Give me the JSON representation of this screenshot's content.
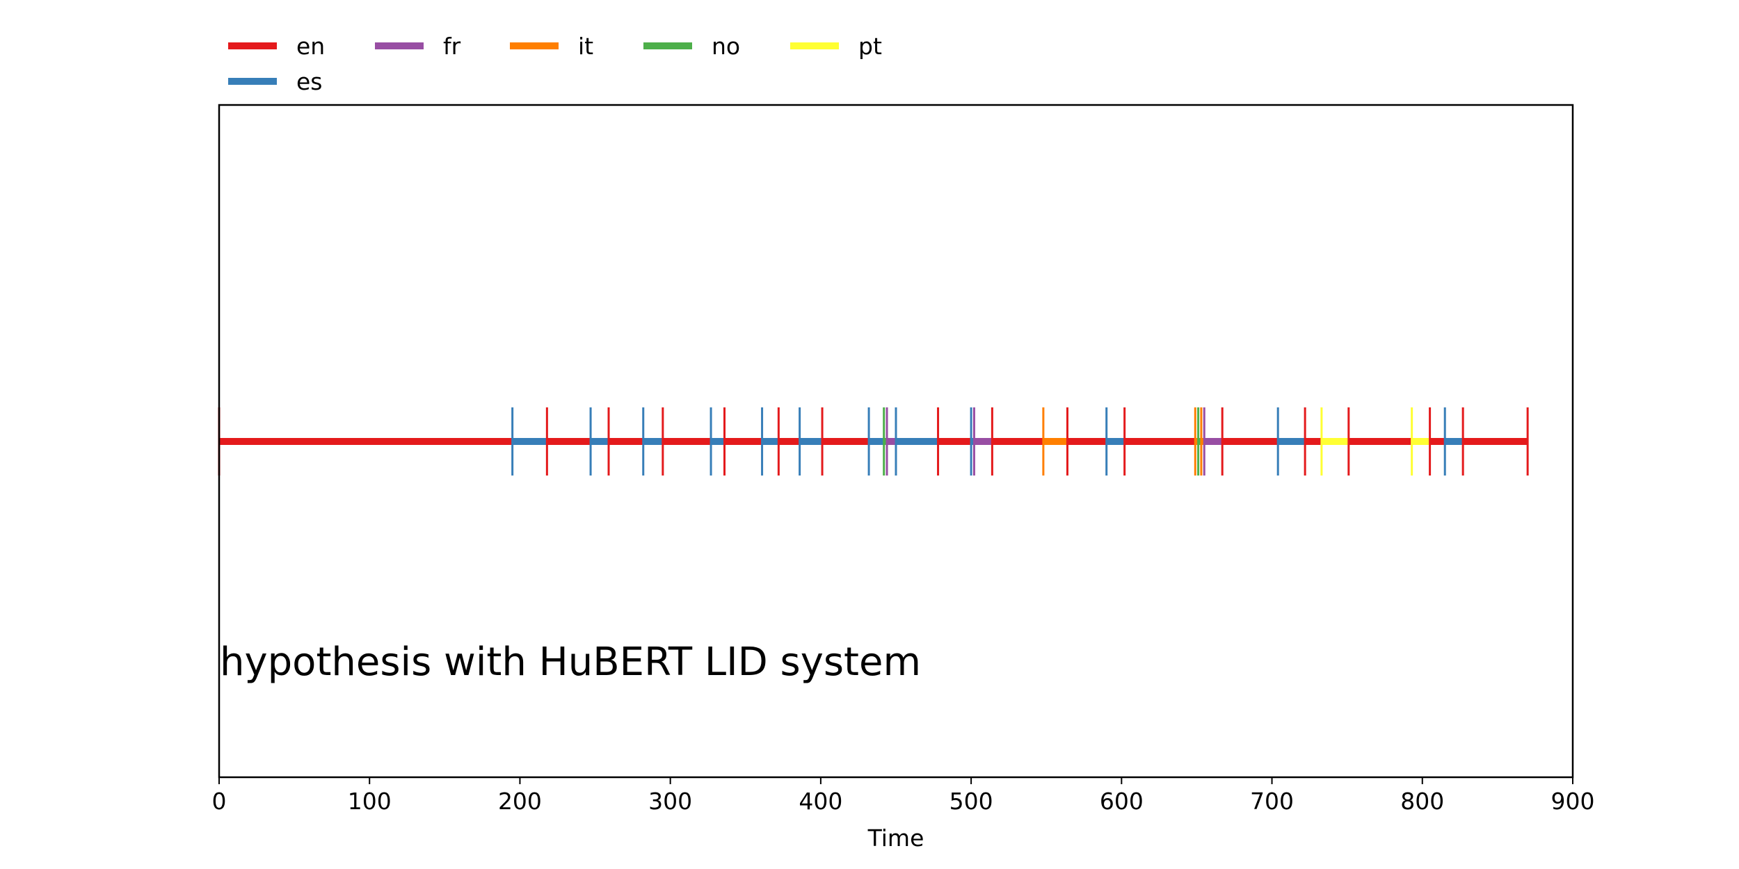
{
  "chart_data": {
    "type": "timeline",
    "title": "",
    "annotation": "hypothesis with HuBERT LID system",
    "xlabel": "Time",
    "ylabel": "",
    "xlim": [
      0,
      900
    ],
    "xticks": [
      0,
      100,
      200,
      300,
      400,
      500,
      600,
      700,
      800,
      900
    ],
    "grid": false,
    "legend": {
      "placement": "top-left, outside plot",
      "entries": [
        {
          "name": "en",
          "color": "#e41a1c"
        },
        {
          "name": "fr",
          "color": "#984ea3"
        },
        {
          "name": "it",
          "color": "#ff7f00"
        },
        {
          "name": "no",
          "color": "#4daf4a"
        },
        {
          "name": "pt",
          "color": "#ffff33"
        },
        {
          "name": "es",
          "color": "#377eb8"
        }
      ]
    },
    "segments": [
      {
        "lang": "en",
        "start": 0,
        "end": 195
      },
      {
        "lang": "es",
        "start": 195,
        "end": 218
      },
      {
        "lang": "en",
        "start": 218,
        "end": 247
      },
      {
        "lang": "es",
        "start": 247,
        "end": 259
      },
      {
        "lang": "en",
        "start": 259,
        "end": 282
      },
      {
        "lang": "es",
        "start": 282,
        "end": 295
      },
      {
        "lang": "en",
        "start": 295,
        "end": 327
      },
      {
        "lang": "es",
        "start": 327,
        "end": 336
      },
      {
        "lang": "en",
        "start": 336,
        "end": 361
      },
      {
        "lang": "es",
        "start": 361,
        "end": 372
      },
      {
        "lang": "en",
        "start": 372,
        "end": 386
      },
      {
        "lang": "es",
        "start": 386,
        "end": 401
      },
      {
        "lang": "en",
        "start": 401,
        "end": 432
      },
      {
        "lang": "es",
        "start": 432,
        "end": 442
      },
      {
        "lang": "no",
        "start": 442,
        "end": 444
      },
      {
        "lang": "fr",
        "start": 444,
        "end": 450
      },
      {
        "lang": "es",
        "start": 450,
        "end": 478
      },
      {
        "lang": "en",
        "start": 478,
        "end": 500
      },
      {
        "lang": "es",
        "start": 500,
        "end": 502
      },
      {
        "lang": "fr",
        "start": 502,
        "end": 514
      },
      {
        "lang": "en",
        "start": 514,
        "end": 548
      },
      {
        "lang": "it",
        "start": 548,
        "end": 564
      },
      {
        "lang": "en",
        "start": 564,
        "end": 590
      },
      {
        "lang": "es",
        "start": 590,
        "end": 602
      },
      {
        "lang": "en",
        "start": 602,
        "end": 649
      },
      {
        "lang": "it",
        "start": 649,
        "end": 651
      },
      {
        "lang": "no",
        "start": 651,
        "end": 653
      },
      {
        "lang": "it",
        "start": 653,
        "end": 655
      },
      {
        "lang": "fr",
        "start": 655,
        "end": 667
      },
      {
        "lang": "en",
        "start": 667,
        "end": 704
      },
      {
        "lang": "es",
        "start": 704,
        "end": 722
      },
      {
        "lang": "en",
        "start": 722,
        "end": 733
      },
      {
        "lang": "pt",
        "start": 733,
        "end": 751
      },
      {
        "lang": "en",
        "start": 751,
        "end": 793
      },
      {
        "lang": "pt",
        "start": 793,
        "end": 805
      },
      {
        "lang": "en",
        "start": 805,
        "end": 815
      },
      {
        "lang": "es",
        "start": 815,
        "end": 827
      },
      {
        "lang": "en",
        "start": 827,
        "end": 870
      }
    ]
  }
}
